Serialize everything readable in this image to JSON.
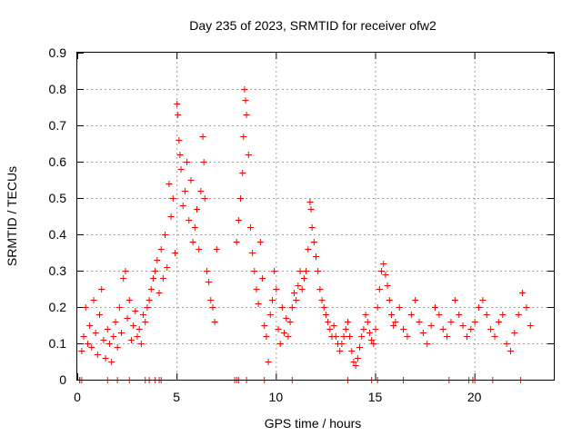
{
  "chart_data": {
    "type": "scatter",
    "title": "Day 235 of 2023, SRMTID for receiver ofw2",
    "xlabel": "GPS time / hours",
    "ylabel": "SRMTID / TECUs",
    "xlim": [
      0,
      24
    ],
    "ylim": [
      0,
      0.9
    ],
    "xticks": [
      0,
      5,
      10,
      15,
      20
    ],
    "yticks": [
      0,
      0.1,
      0.2,
      0.3,
      0.4,
      0.5,
      0.6,
      0.7,
      0.8,
      0.9
    ],
    "xtick_labels": [
      "0",
      "5",
      "10",
      "15",
      "20"
    ],
    "ytick_labels": [
      "0",
      "0.1",
      "0.2",
      "0.3",
      "0.4",
      "0.5",
      "0.6",
      "0.7",
      "0.8",
      "0.9"
    ],
    "grid": true,
    "marker": "+",
    "marker_color": "#ff0000",
    "series": [
      {
        "name": "SRMTID",
        "points": [
          [
            0.1,
            0.0
          ],
          [
            0.2,
            0.08
          ],
          [
            0.3,
            0.12
          ],
          [
            0.4,
            0.2
          ],
          [
            0.5,
            0.1
          ],
          [
            0.6,
            0.15
          ],
          [
            0.7,
            0.09
          ],
          [
            0.8,
            0.22
          ],
          [
            0.9,
            0.13
          ],
          [
            1.0,
            0.07
          ],
          [
            1.1,
            0.18
          ],
          [
            1.2,
            0.25
          ],
          [
            1.3,
            0.11
          ],
          [
            1.4,
            0.06
          ],
          [
            1.5,
            0.14
          ],
          [
            1.6,
            0.1
          ],
          [
            1.7,
            0.05
          ],
          [
            1.8,
            0.12
          ],
          [
            1.9,
            0.16
          ],
          [
            2.0,
            0.09
          ],
          [
            2.1,
            0.2
          ],
          [
            2.2,
            0.13
          ],
          [
            2.3,
            0.28
          ],
          [
            2.4,
            0.3
          ],
          [
            2.5,
            0.17
          ],
          [
            2.6,
            0.22
          ],
          [
            2.7,
            0.11
          ],
          [
            2.8,
            0.15
          ],
          [
            2.9,
            0.19
          ],
          [
            3.0,
            0.12
          ],
          [
            3.1,
            0.14
          ],
          [
            3.2,
            0.1
          ],
          [
            3.3,
            0.18
          ],
          [
            3.4,
            0.16
          ],
          [
            3.5,
            0.2
          ],
          [
            3.6,
            0.22
          ],
          [
            3.7,
            0.25
          ],
          [
            3.8,
            0.28
          ],
          [
            3.9,
            0.3
          ],
          [
            4.0,
            0.33
          ],
          [
            4.1,
            0.24
          ],
          [
            4.2,
            0.36
          ],
          [
            4.3,
            0.28
          ],
          [
            4.4,
            0.4
          ],
          [
            4.5,
            0.31
          ],
          [
            4.6,
            0.54
          ],
          [
            4.7,
            0.45
          ],
          [
            4.8,
            0.5
          ],
          [
            4.9,
            0.35
          ],
          [
            5.0,
            0.76
          ],
          [
            5.05,
            0.73
          ],
          [
            5.1,
            0.66
          ],
          [
            5.15,
            0.62
          ],
          [
            5.2,
            0.58
          ],
          [
            5.3,
            0.48
          ],
          [
            5.4,
            0.52
          ],
          [
            5.5,
            0.6
          ],
          [
            5.6,
            0.44
          ],
          [
            5.7,
            0.55
          ],
          [
            5.8,
            0.38
          ],
          [
            5.9,
            0.42
          ],
          [
            6.0,
            0.47
          ],
          [
            6.1,
            0.36
          ],
          [
            6.2,
            0.52
          ],
          [
            6.3,
            0.67
          ],
          [
            6.35,
            0.6
          ],
          [
            6.4,
            0.5
          ],
          [
            6.5,
            0.3
          ],
          [
            6.6,
            0.27
          ],
          [
            6.7,
            0.22
          ],
          [
            6.8,
            0.2
          ],
          [
            6.9,
            0.16
          ],
          [
            7.0,
            0.36
          ],
          [
            8.0,
            0.38
          ],
          [
            8.1,
            0.44
          ],
          [
            8.2,
            0.5
          ],
          [
            8.3,
            0.57
          ],
          [
            8.35,
            0.67
          ],
          [
            8.4,
            0.8
          ],
          [
            8.45,
            0.77
          ],
          [
            8.5,
            0.73
          ],
          [
            8.6,
            0.62
          ],
          [
            8.7,
            0.42
          ],
          [
            8.8,
            0.35
          ],
          [
            8.9,
            0.3
          ],
          [
            9.0,
            0.25
          ],
          [
            9.1,
            0.21
          ],
          [
            9.2,
            0.38
          ],
          [
            9.3,
            0.28
          ],
          [
            9.4,
            0.15
          ],
          [
            9.5,
            0.12
          ],
          [
            9.6,
            0.05
          ],
          [
            9.7,
            0.18
          ],
          [
            9.8,
            0.22
          ],
          [
            9.9,
            0.3
          ],
          [
            10.0,
            0.25
          ],
          [
            10.1,
            0.14
          ],
          [
            10.2,
            0.1
          ],
          [
            10.3,
            0.2
          ],
          [
            10.4,
            0.13
          ],
          [
            10.5,
            0.17
          ],
          [
            10.6,
            0.12
          ],
          [
            10.7,
            0.16
          ],
          [
            10.8,
            0.2
          ],
          [
            10.9,
            0.24
          ],
          [
            11.0,
            0.22
          ],
          [
            11.1,
            0.26
          ],
          [
            11.2,
            0.3
          ],
          [
            11.3,
            0.25
          ],
          [
            11.4,
            0.28
          ],
          [
            11.5,
            0.3
          ],
          [
            11.6,
            0.36
          ],
          [
            11.7,
            0.49
          ],
          [
            11.75,
            0.47
          ],
          [
            11.8,
            0.42
          ],
          [
            11.9,
            0.38
          ],
          [
            12.0,
            0.34
          ],
          [
            12.1,
            0.3
          ],
          [
            12.2,
            0.25
          ],
          [
            12.3,
            0.22
          ],
          [
            12.4,
            0.2
          ],
          [
            12.5,
            0.18
          ],
          [
            12.6,
            0.16
          ],
          [
            12.7,
            0.14
          ],
          [
            12.8,
            0.12
          ],
          [
            12.9,
            0.15
          ],
          [
            13.0,
            0.12
          ],
          [
            13.1,
            0.1
          ],
          [
            13.2,
            0.08
          ],
          [
            13.3,
            0.1
          ],
          [
            13.4,
            0.12
          ],
          [
            13.5,
            0.14
          ],
          [
            13.6,
            0.16
          ],
          [
            13.7,
            0.12
          ],
          [
            13.8,
            0.08
          ],
          [
            13.9,
            0.05
          ],
          [
            14.0,
            0.04
          ],
          [
            14.1,
            0.06
          ],
          [
            14.2,
            0.09
          ],
          [
            14.3,
            0.12
          ],
          [
            14.4,
            0.14
          ],
          [
            14.5,
            0.18
          ],
          [
            14.6,
            0.16
          ],
          [
            14.7,
            0.13
          ],
          [
            14.8,
            0.11
          ],
          [
            14.9,
            0.1
          ],
          [
            15.0,
            0.14
          ],
          [
            15.1,
            0.2
          ],
          [
            15.2,
            0.25
          ],
          [
            15.3,
            0.3
          ],
          [
            15.4,
            0.32
          ],
          [
            15.5,
            0.29
          ],
          [
            15.6,
            0.26
          ],
          [
            15.7,
            0.22
          ],
          [
            15.8,
            0.18
          ],
          [
            15.9,
            0.15
          ],
          [
            16.0,
            0.16
          ],
          [
            16.2,
            0.2
          ],
          [
            16.4,
            0.14
          ],
          [
            16.6,
            0.12
          ],
          [
            16.8,
            0.18
          ],
          [
            17.0,
            0.22
          ],
          [
            17.2,
            0.16
          ],
          [
            17.4,
            0.13
          ],
          [
            17.6,
            0.1
          ],
          [
            17.8,
            0.15
          ],
          [
            18.0,
            0.2
          ],
          [
            18.2,
            0.18
          ],
          [
            18.4,
            0.14
          ],
          [
            18.6,
            0.12
          ],
          [
            18.8,
            0.16
          ],
          [
            19.0,
            0.22
          ],
          [
            19.2,
            0.18
          ],
          [
            19.4,
            0.15
          ],
          [
            19.6,
            0.12
          ],
          [
            19.8,
            0.14
          ],
          [
            20.0,
            0.16
          ],
          [
            20.2,
            0.2
          ],
          [
            20.4,
            0.22
          ],
          [
            20.6,
            0.18
          ],
          [
            20.8,
            0.14
          ],
          [
            21.0,
            0.12
          ],
          [
            21.2,
            0.16
          ],
          [
            21.4,
            0.18
          ],
          [
            21.6,
            0.1
          ],
          [
            21.8,
            0.08
          ],
          [
            22.0,
            0.13
          ],
          [
            22.2,
            0.18
          ],
          [
            22.4,
            0.24
          ],
          [
            22.6,
            0.2
          ],
          [
            22.8,
            0.15
          ]
        ]
      }
    ],
    "baseline_markers": [
      0.1,
      0.2,
      1.5,
      2.0,
      2.6,
      3.4,
      3.6,
      3.9,
      4.1,
      4.2,
      7.9,
      8.0,
      8.1,
      8.5,
      9.4,
      10.8,
      13.6,
      14.8,
      15.1,
      16.4,
      18.7,
      19.7,
      19.9,
      20.0,
      20.9,
      22.3
    ]
  }
}
